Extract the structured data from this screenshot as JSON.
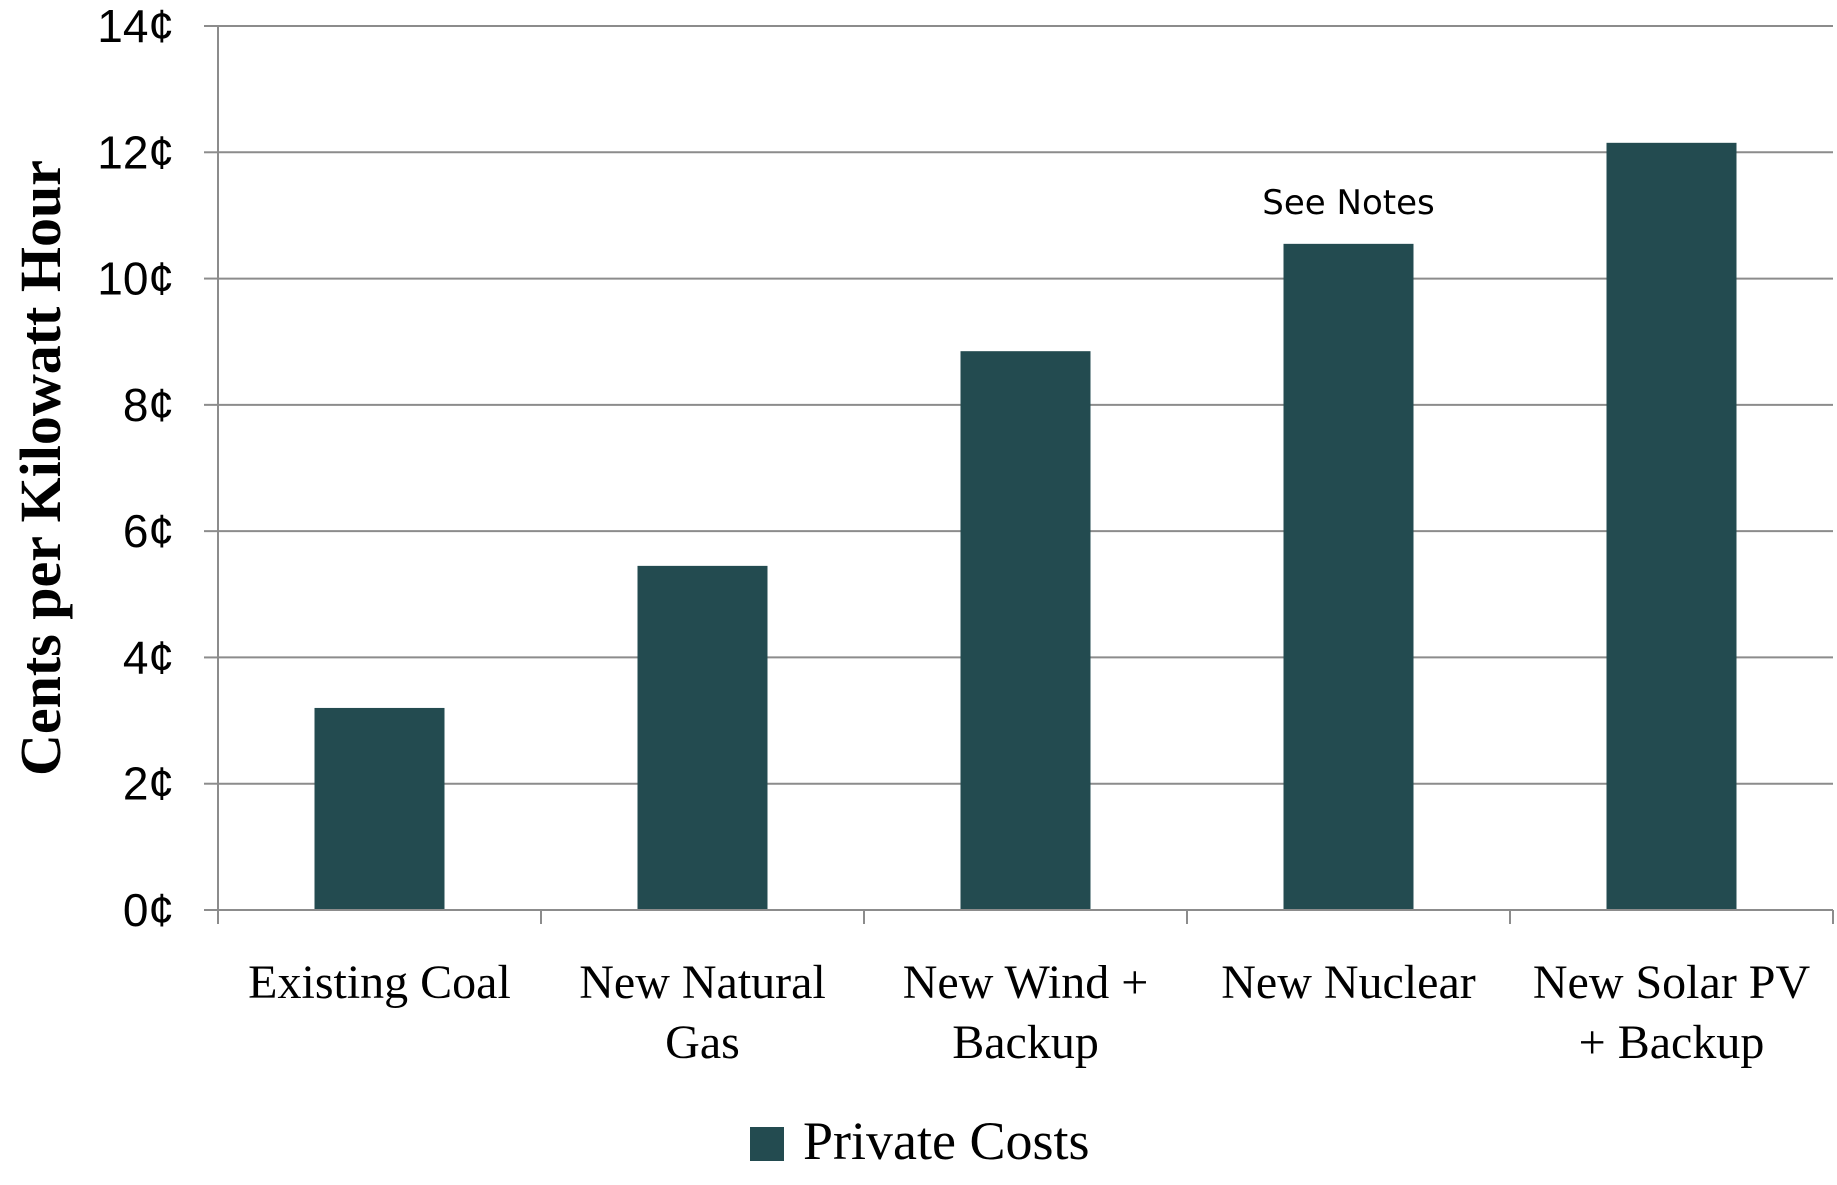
{
  "chart_data": {
    "type": "bar",
    "categories": [
      [
        "Existing Coal"
      ],
      [
        "New Natural",
        "Gas"
      ],
      [
        "New Wind +",
        "Backup"
      ],
      [
        "New Nuclear"
      ],
      [
        "New Solar PV",
        "+ Backup"
      ]
    ],
    "series": [
      {
        "name": "Private Costs",
        "values": [
          3.2,
          5.45,
          8.85,
          10.55,
          12.15
        ],
        "color": "#234b50"
      }
    ],
    "ylabel": "Cents per Kilowatt Hour",
    "ylim": [
      0,
      14
    ],
    "yticks": [
      0,
      2,
      4,
      6,
      8,
      10,
      12,
      14
    ],
    "ytick_labels": [
      "0¢",
      "2¢",
      "4¢",
      "6¢",
      "8¢",
      "10¢",
      "12¢",
      "14¢"
    ],
    "annotations": [
      {
        "category_index": 3,
        "text": "See Notes"
      }
    ],
    "grid": true,
    "legend_position": "bottom"
  }
}
